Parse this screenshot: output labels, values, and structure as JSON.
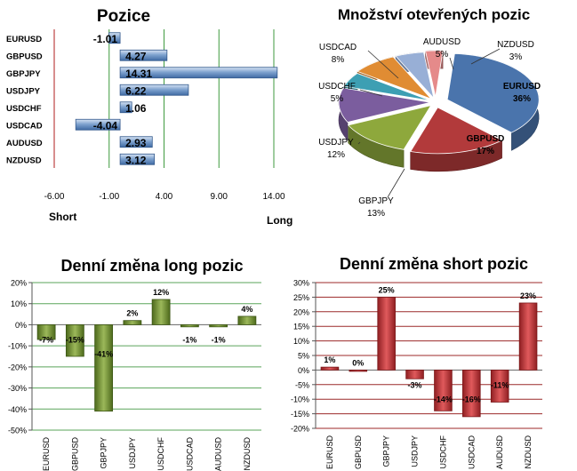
{
  "colors": {
    "bar_blue": "#4f7fb8",
    "bar_green": "#6a8a2c",
    "bar_red": "#c0393b",
    "grid_green": "#5aa55a",
    "grid_red": "#9c2a2a",
    "axis_red": "#b01c1c",
    "pie_colors": [
      "#4a74ac",
      "#b23a3b",
      "#8ea83c",
      "#7b5d9e",
      "#3d9fb3",
      "#e08c33",
      "#98afd6",
      "#e58a8a"
    ]
  },
  "chart_data": [
    {
      "id": "positions",
      "type": "bar",
      "orientation": "horizontal",
      "title": "Pozice",
      "categories": [
        "EURUSD",
        "GBPUSD",
        "GBPJPY",
        "USDJPY",
        "USDCHF",
        "USDCAD",
        "AUDUSD",
        "NZDUSD"
      ],
      "values": [
        -1.01,
        4.27,
        14.31,
        6.22,
        1.06,
        -4.04,
        2.93,
        3.12
      ],
      "labels": [
        "-1.01",
        "4.27",
        "14.31",
        "6.22",
        "1.06",
        "-4.04",
        "2.93",
        "3.12"
      ],
      "xlim": [
        -6,
        14
      ],
      "xticks": [
        "-6.00",
        "-1.00",
        "4.00",
        "9.00",
        "14.00"
      ],
      "xtick_values": [
        -6,
        -1,
        4,
        9,
        14
      ],
      "left_label": "Short",
      "right_label": "Long",
      "grid": true
    },
    {
      "id": "open_positions",
      "type": "pie",
      "title": "Množství otevřených pozic",
      "categories": [
        "EURUSD",
        "GBPUSD",
        "GBPJPY",
        "USDJPY",
        "USDCHF",
        "USDCAD",
        "AUDUSD",
        "NZDUSD"
      ],
      "values": [
        36,
        17,
        13,
        12,
        5,
        8,
        5,
        3
      ],
      "labels": [
        "36%",
        "17%",
        "13%",
        "12%",
        "5%",
        "8%",
        "5%",
        "3%"
      ]
    },
    {
      "id": "long_change",
      "type": "bar",
      "title": "Denní změna long pozic",
      "categories": [
        "EURUSD",
        "GBPUSD",
        "GBPJPY",
        "USDJPY",
        "USDCHF",
        "USDCAD",
        "AUDUSD",
        "NZDUSD"
      ],
      "values": [
        -7,
        -15,
        -41,
        2,
        12,
        -1,
        -1,
        4
      ],
      "labels": [
        "-7%",
        "-15%",
        "-41%",
        "2%",
        "12%",
        "-1%",
        "-1%",
        "4%"
      ],
      "ylim": [
        -50,
        20
      ],
      "yticks": [
        "20%",
        "10%",
        "0%",
        "-10%",
        "-20%",
        "-30%",
        "-40%",
        "-50%"
      ],
      "ytick_values": [
        20,
        10,
        0,
        -10,
        -20,
        -30,
        -40,
        -50
      ],
      "grid": true
    },
    {
      "id": "short_change",
      "type": "bar",
      "title": "Denní změna short pozic",
      "categories": [
        "EURUSD",
        "GBPUSD",
        "GBPJPY",
        "USDJPY",
        "USDCHF",
        "USDCAD",
        "AUDUSD",
        "NZDUSD"
      ],
      "values": [
        1,
        0,
        25,
        -3,
        -14,
        -16,
        -11,
        23
      ],
      "labels": [
        "1%",
        "0%",
        "25%",
        "-3%",
        "-14%",
        "-16%",
        "-11%",
        "23%"
      ],
      "ylim": [
        -20,
        30
      ],
      "yticks": [
        "30%",
        "25%",
        "20%",
        "15%",
        "10%",
        "5%",
        "0%",
        "-5%",
        "-10%",
        "-15%",
        "-20%"
      ],
      "ytick_values": [
        30,
        25,
        20,
        15,
        10,
        5,
        0,
        -5,
        -10,
        -15,
        -20
      ],
      "grid": true
    }
  ]
}
